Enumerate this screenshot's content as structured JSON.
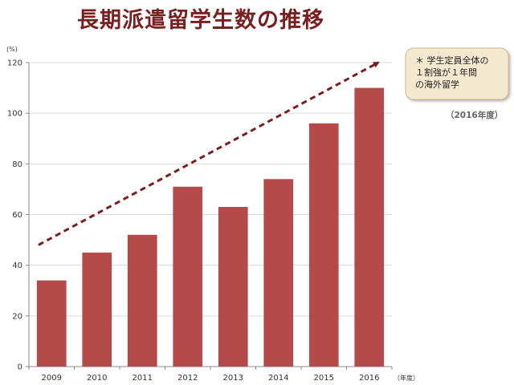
{
  "title": "長期派遣留学生数の推移",
  "chart_data": {
    "type": "bar",
    "categories": [
      "2009",
      "2010",
      "2011",
      "2012",
      "2013",
      "2014",
      "2015",
      "2016"
    ],
    "values": [
      34,
      45,
      52,
      71,
      63,
      74,
      96,
      110
    ],
    "ylim": [
      0,
      120
    ],
    "yticks": [
      0,
      20,
      40,
      60,
      80,
      100,
      120
    ],
    "ylabel": "(%)",
    "xlabel": "（年度）",
    "grid": true,
    "bar_color": "#b54a4a",
    "grid_color": "#d9d9d9",
    "trend_color": "#7a1f1f",
    "trend_arrow": {
      "from": [
        -0.5,
        48
      ],
      "to": [
        7.2,
        120
      ]
    },
    "callout": {
      "lines": [
        "＊ 学生定員全体の",
        "１割強が１年間",
        "の海外留学"
      ],
      "color": "#f4e9cf"
    },
    "note": "（2016年度）"
  }
}
